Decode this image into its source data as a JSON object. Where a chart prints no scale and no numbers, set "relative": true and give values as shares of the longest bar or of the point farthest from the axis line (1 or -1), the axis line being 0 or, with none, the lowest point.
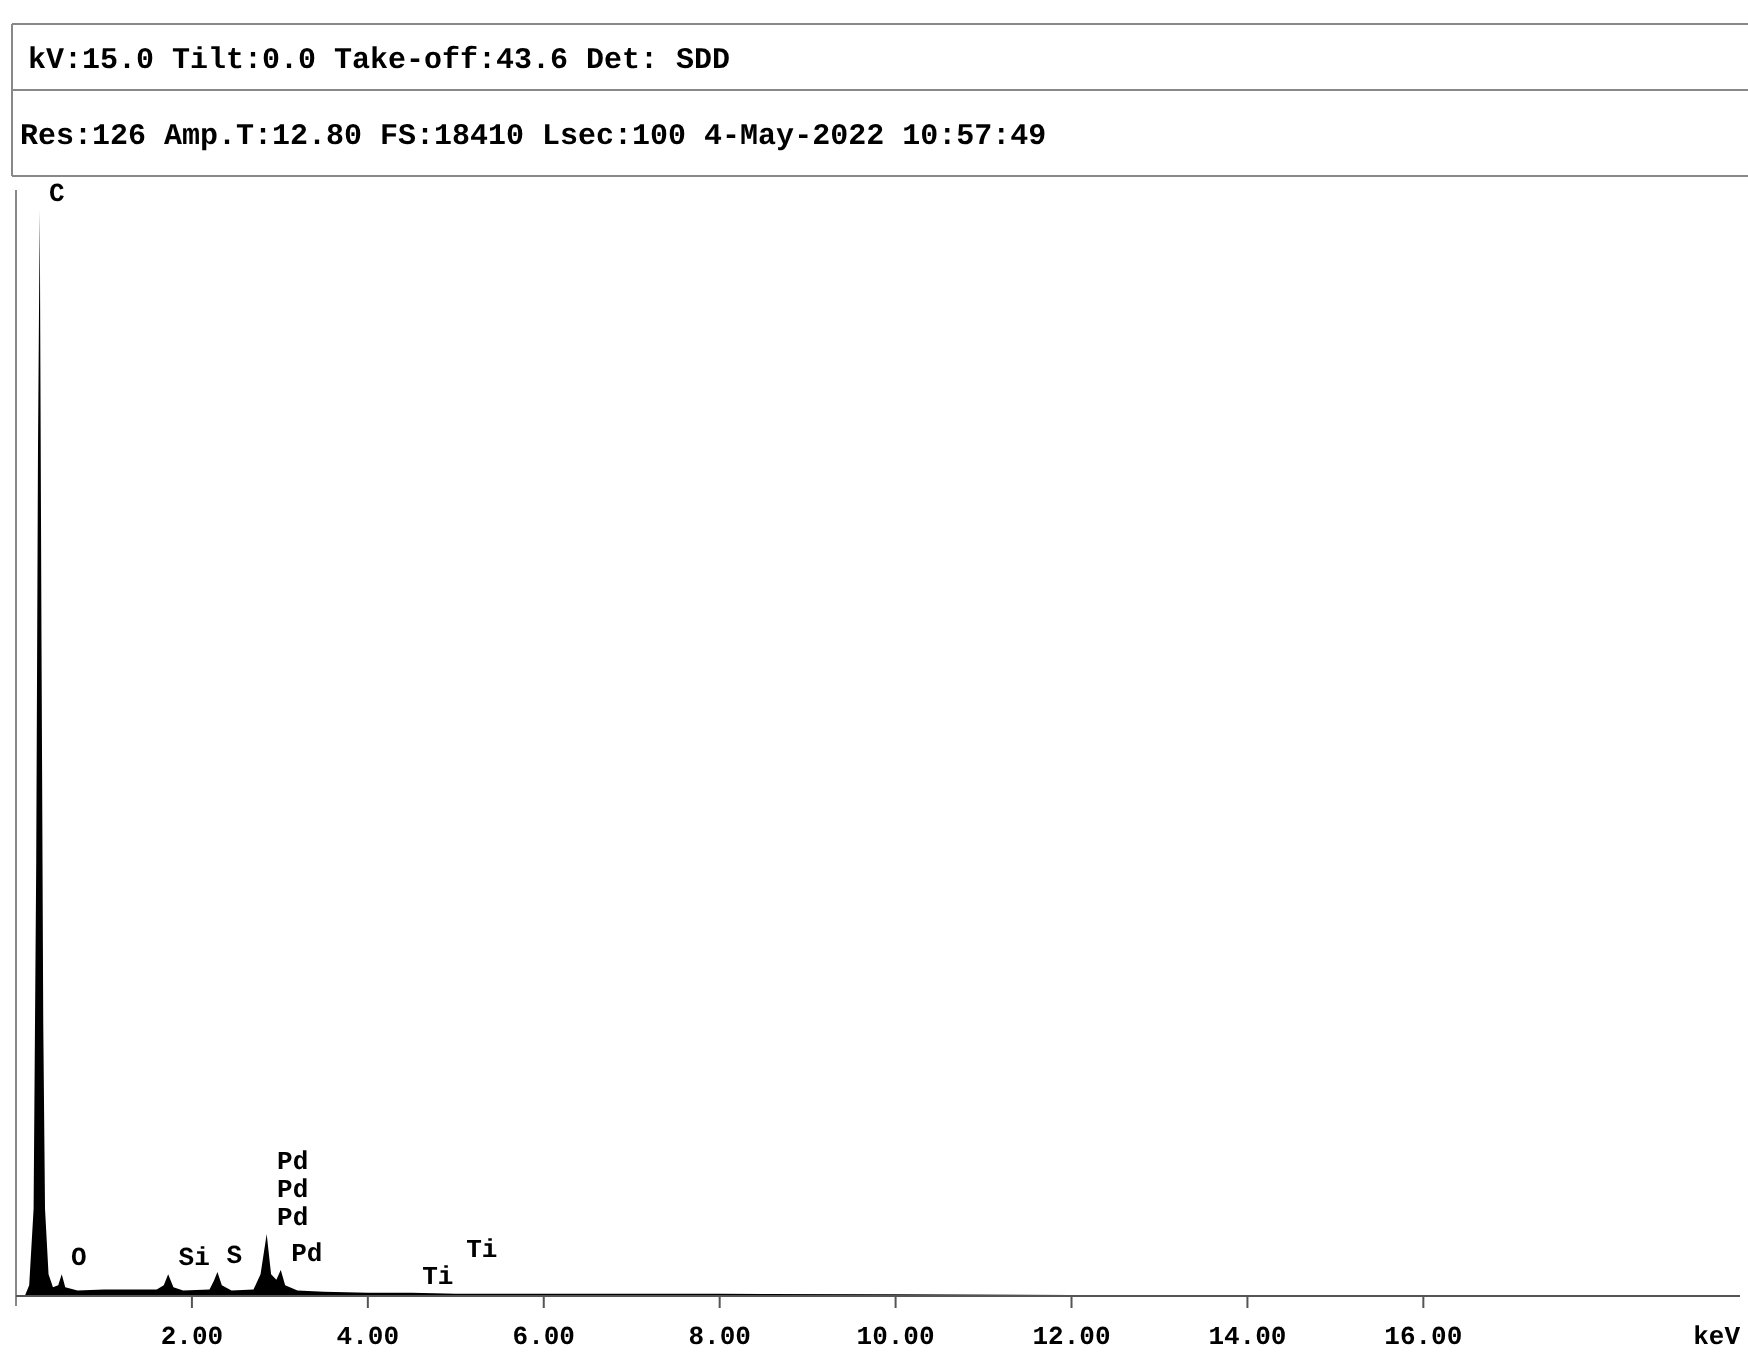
{
  "chart_data": {
    "type": "area",
    "title": "kV:15.0 Tilt:0.0  Take-off:43.6   Det: SDD",
    "subtitle": "Res:126 Amp.T:12.80 FS:18410 Lsec:100  4-May-2022 10:57:49",
    "xlabel": "keV",
    "relative": true,
    "xlim": [
      0,
      19.6
    ],
    "xticks": [
      {
        "value": 2,
        "label": "2.00"
      },
      {
        "value": 4,
        "label": "4.00"
      },
      {
        "value": 6,
        "label": "6.00"
      },
      {
        "value": 8,
        "label": "8.00"
      },
      {
        "value": 10,
        "label": "10.00"
      },
      {
        "value": 12,
        "label": "12.00"
      },
      {
        "value": 14,
        "label": "14.00"
      },
      {
        "value": 16,
        "label": "16.00"
      }
    ],
    "grid": false,
    "series": [
      {
        "color": "#000000",
        "x": [
          0.1,
          0.15,
          0.2,
          0.23,
          0.25,
          0.27,
          0.29,
          0.31,
          0.33,
          0.37,
          0.42,
          0.48,
          0.52,
          0.56,
          0.7,
          1.0,
          1.3,
          1.6,
          1.68,
          1.73,
          1.79,
          1.9,
          2.2,
          2.25,
          2.29,
          2.34,
          2.45,
          2.7,
          2.78,
          2.85,
          2.9,
          2.96,
          3.01,
          3.06,
          3.2,
          3.5,
          4.0,
          4.5,
          5,
          6,
          8,
          10,
          12,
          15,
          19,
          19.6
        ],
        "values": [
          0,
          0.01,
          0.08,
          0.4,
          0.78,
          1.0,
          0.6,
          0.25,
          0.08,
          0.02,
          0.008,
          0.01,
          0.02,
          0.008,
          0.005,
          0.006,
          0.006,
          0.006,
          0.01,
          0.02,
          0.008,
          0.005,
          0.006,
          0.014,
          0.022,
          0.01,
          0.005,
          0.006,
          0.02,
          0.057,
          0.02,
          0.015,
          0.024,
          0.01,
          0.005,
          0.004,
          0.003,
          0.003,
          0.002,
          0.002,
          0.002,
          0.0015,
          0.001,
          0.001,
          0.001,
          0.001
        ]
      }
    ],
    "annotations": [
      {
        "text": "C",
        "x": 0.27,
        "y": 1.0
      },
      {
        "text": "O",
        "x": 0.52,
        "y": 0.02
      },
      {
        "text": "Si",
        "x": 1.73,
        "y": 0.02
      },
      {
        "text": "S",
        "x": 2.29,
        "y": 0.022
      },
      {
        "text": "Pd",
        "x": 2.85,
        "y": 0.057
      },
      {
        "text": "Pd",
        "x": 2.85,
        "y": 0.057
      },
      {
        "text": "Pd",
        "x": 2.85,
        "y": 0.057
      },
      {
        "text": "Pd",
        "x": 3.01,
        "y": 0.024
      },
      {
        "text": "Ti",
        "x": 4.5,
        "y": 0.003
      },
      {
        "text": "Ti",
        "x": 5,
        "y": 0.002
      }
    ]
  }
}
